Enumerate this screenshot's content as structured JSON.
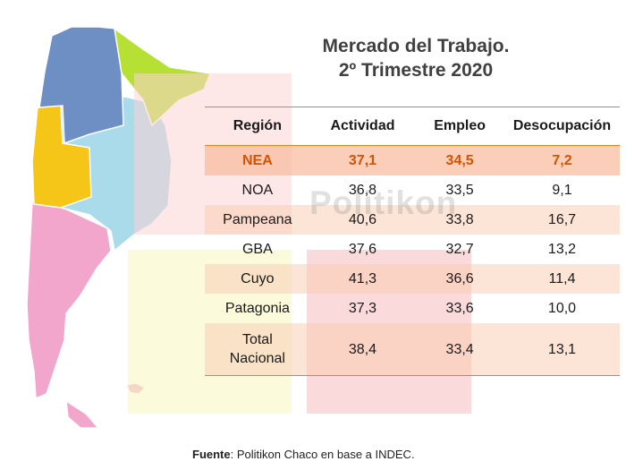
{
  "title_line1": "Mercado del Trabajo.",
  "title_line2": "2º Trimestre 2020",
  "watermark": "Politikon",
  "footer": {
    "label": "Fuente",
    "text": ": Politikon Chaco en base a INDEC."
  },
  "colors": {
    "accent": "#e67e22",
    "highlight_text": "#d35400",
    "map_noa": "#6d8fc4",
    "map_nea": "#b7e034",
    "map_cuyo": "#f5c518",
    "map_pampeana": "#a9dbea",
    "map_patagonia": "#f2a6cb"
  },
  "chart_data": {
    "type": "table",
    "columns": [
      "Región",
      "Actividad",
      "Empleo",
      "Desocupación"
    ],
    "rows": [
      [
        "NEA",
        "37,1",
        "34,5",
        "7,2"
      ],
      [
        "NOA",
        "36,8",
        "33,5",
        "9,1"
      ],
      [
        "Pampeana",
        "40,6",
        "33,8",
        "16,7"
      ],
      [
        "GBA",
        "37,6",
        "32,7",
        "13,2"
      ],
      [
        "Cuyo",
        "41,3",
        "36,6",
        "11,4"
      ],
      [
        "Patagonia",
        "37,3",
        "33,6",
        "10,0"
      ],
      [
        "Total\nNacional",
        "38,4",
        "33,4",
        "13,1"
      ]
    ]
  }
}
